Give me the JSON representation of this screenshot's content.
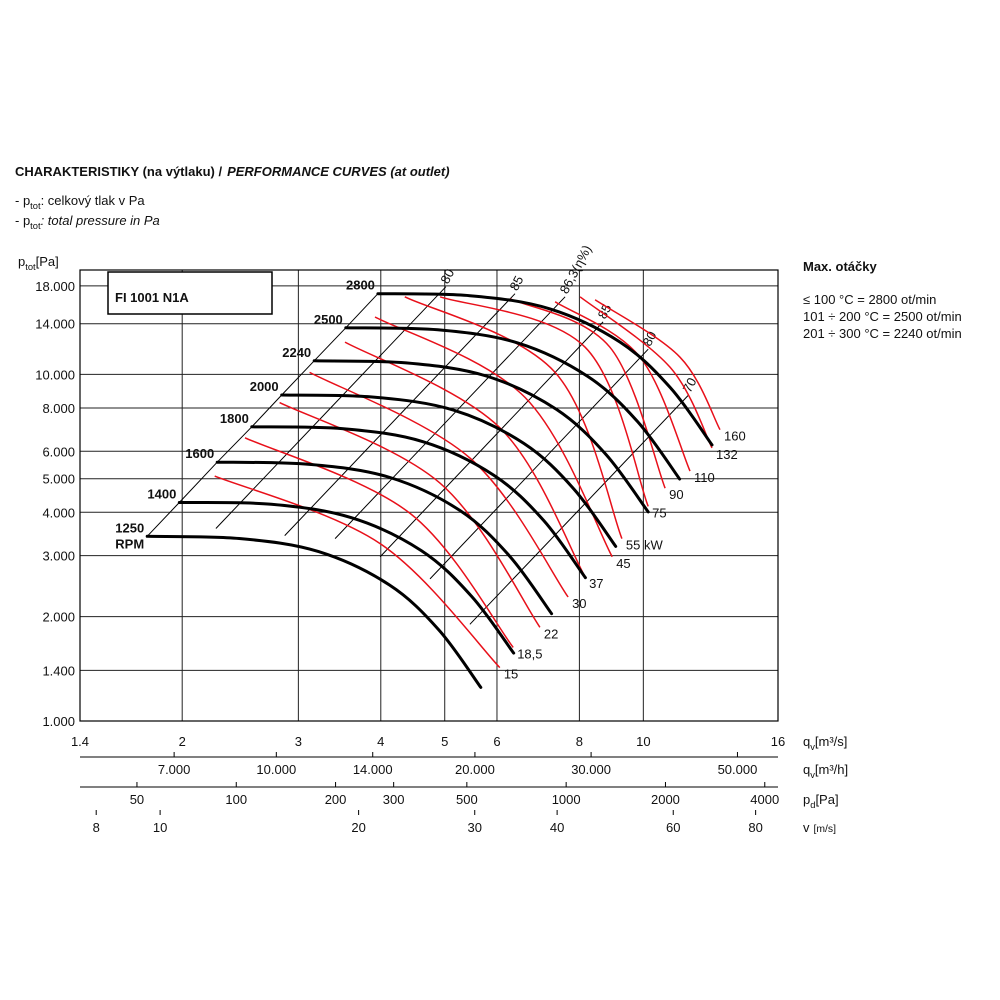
{
  "chart_data": {
    "type": "line",
    "title": [
      "CHARAKTERISTIKY (na výtlaku) /",
      "PERFORMANCE CURVES (at outlet)"
    ],
    "notes": [
      {
        "prefix": "- p",
        "sub": "tot",
        "text": ": celkový tlak v Pa"
      },
      {
        "prefix": "- p",
        "sub": "tot",
        "text": ": total pressure in Pa"
      }
    ],
    "model": "FI 1001 N1A",
    "xlabel": {
      "symbol": "q",
      "sub": "v",
      "unit": "[m³/s]"
    },
    "ylabel": {
      "symbol": "p",
      "sub": "tot",
      "unit": "[Pa]"
    },
    "xscale": "log",
    "yscale": "log",
    "xlim": [
      1.4,
      16
    ],
    "ylim": [
      1000,
      20000
    ],
    "xticks": [
      1.4,
      2,
      3,
      4,
      5,
      6,
      8,
      10,
      16
    ],
    "yticks": [
      {
        "value": 1000,
        "label": "1.000"
      },
      {
        "value": 1400,
        "label": "1.400"
      },
      {
        "value": 2000,
        "label": "2.000"
      },
      {
        "value": 3000,
        "label": "3.000"
      },
      {
        "value": 4000,
        "label": "4.000"
      },
      {
        "value": 5000,
        "label": "5.000"
      },
      {
        "value": 6000,
        "label": "6.000"
      },
      {
        "value": 8000,
        "label": "8.000"
      },
      {
        "value": 10000,
        "label": "10.000"
      },
      {
        "value": 14000,
        "label": "14.000"
      },
      {
        "value": 18000,
        "label": "18.000"
      }
    ],
    "grid": true,
    "series": [
      {
        "name": "2800",
        "color": "#000000",
        "x": [
          3.96,
          5.46,
          7.22,
          9.22,
          10.98,
          12.71
        ],
        "values": [
          17090,
          16860,
          15450,
          12390,
          9170,
          6260
        ]
      },
      {
        "name": "2500",
        "color": "#000000",
        "x": [
          3.54,
          4.88,
          6.45,
          8.23,
          9.8,
          11.35
        ],
        "values": [
          13620,
          13440,
          12320,
          9880,
          7310,
          4990
        ]
      },
      {
        "name": "2240",
        "color": "#000000",
        "x": [
          3.17,
          4.37,
          5.78,
          7.38,
          8.78,
          10.17
        ],
        "values": [
          10940,
          10790,
          9890,
          7930,
          5870,
          4010
        ]
      },
      {
        "name": "2000",
        "color": "#000000",
        "x": [
          2.83,
          3.9,
          5.16,
          6.59,
          7.84,
          9.08
        ],
        "values": [
          8720,
          8600,
          7880,
          6320,
          4680,
          3190
        ]
      },
      {
        "name": "1800",
        "color": "#000000",
        "x": [
          2.55,
          3.51,
          4.64,
          5.93,
          7.06,
          8.17
        ],
        "values": [
          7060,
          6970,
          6390,
          5120,
          3790,
          2590
        ]
      },
      {
        "name": "1600",
        "color": "#000000",
        "x": [
          2.26,
          3.12,
          4.13,
          5.27,
          6.27,
          7.26
        ],
        "values": [
          5580,
          5500,
          5040,
          4050,
          2990,
          2040
        ]
      },
      {
        "name": "1400",
        "color": "#000000",
        "x": [
          1.98,
          2.73,
          3.61,
          4.61,
          5.49,
          6.36
        ],
        "values": [
          4270,
          4220,
          3860,
          3100,
          2290,
          1570
        ]
      },
      {
        "name": "1250",
        "color": "#000000",
        "x": [
          1.77,
          2.44,
          3.22,
          4.12,
          4.9,
          5.67
        ],
        "values": [
          3410,
          3360,
          3080,
          2470,
          1830,
          1250
        ]
      }
    ],
    "rpm_unit": "RPM",
    "power_curves": [
      {
        "name": "15",
        "color": "#e8101a",
        "x": [
          2.24,
          3.99,
          6.06
        ],
        "values": [
          5086,
          3249,
          1426
        ]
      },
      {
        "name": "18,5",
        "color": "#e8101a",
        "x": [
          2.49,
          4.43,
          6.35
        ],
        "values": [
          6560,
          3971,
          1630
        ]
      },
      {
        "name": "22",
        "color": "#e8101a",
        "x": [
          2.81,
          4.92,
          6.97
        ],
        "values": [
          8290,
          4853,
          1864
        ]
      },
      {
        "name": "30",
        "color": "#e8101a",
        "x": [
          3.12,
          5.46,
          7.69
        ],
        "values": [
          10130,
          5737,
          2279
        ]
      },
      {
        "name": "37",
        "color": "#e8101a",
        "x": [
          3.53,
          6.06,
          8.16
        ],
        "values": [
          12390,
          7015,
          2604
        ]
      },
      {
        "name": "45",
        "color": "#e8101a",
        "x": [
          3.92,
          6.62,
          8.97
        ],
        "values": [
          14640,
          8574,
          2977
        ]
      },
      {
        "name": "55 kW",
        "color": "#e8101a",
        "x": [
          4.35,
          7.35,
          9.28
        ],
        "values": [
          16740,
          10130,
          3358
        ]
      },
      {
        "name": "75",
        "color": "#e8101a",
        "x": [
          4.92,
          8.16,
          10.17
        ],
        "values": [
          16740,
          11980,
          4161
        ]
      },
      {
        "name": "90",
        "color": "#e8101a",
        "x": [
          6.28,
          8.9,
          10.79
        ],
        "values": [
          16520,
          11980,
          4694
        ]
      },
      {
        "name": "110",
        "color": "#e8101a",
        "x": [
          7.35,
          9.89,
          11.77
        ],
        "values": [
          16190,
          11200,
          5259
        ]
      },
      {
        "name": "132",
        "color": "#e8101a",
        "x": [
          8.02,
          10.98,
          12.71
        ],
        "values": [
          16740,
          10480,
          6135
        ]
      },
      {
        "name": "160",
        "color": "#e8101a",
        "x": [
          8.45,
          11.37,
          13.07
        ],
        "values": [
          16410,
          11200,
          6922
        ]
      }
    ],
    "efficiency_lines": [
      {
        "name": "80",
        "x": [
          2.25,
          5.02
        ],
        "values": [
          3592,
          17900
        ]
      },
      {
        "name": "85",
        "x": [
          2.86,
          6.39
        ],
        "values": [
          3427,
          17090
        ]
      },
      {
        "name": "86,3(η%)",
        "x": [
          3.41,
          7.61
        ],
        "values": [
          3358,
          16740
        ]
      },
      {
        "name": "85",
        "x": [
          3.99,
          8.69
        ],
        "values": [
          2977,
          14170
        ]
      },
      {
        "name": "80",
        "x": [
          4.75,
          10.17
        ],
        "values": [
          2570,
          11820
        ]
      },
      {
        "name": "70",
        "x": [
          5.46,
          11.69
        ],
        "values": [
          1901,
          8690
        ]
      }
    ],
    "secondary_axes": [
      {
        "label": {
          "symbol": "q",
          "sub": "v",
          "unit": "[m³/h]"
        },
        "lim": [
          5040,
          57600
        ],
        "ticks": [
          {
            "value": 7000,
            "label": "7.000"
          },
          {
            "value": 10000,
            "label": "10.000"
          },
          {
            "value": 14000,
            "label": "14.000"
          },
          {
            "value": 20000,
            "label": "20.000"
          },
          {
            "value": 30000,
            "label": "30.000"
          },
          {
            "value": 50000,
            "label": "50.000"
          }
        ]
      },
      {
        "label": {
          "symbol": "p",
          "sub": "d",
          "unit": "[Pa]"
        },
        "lim": [
          33.6,
          4387
        ],
        "ticks": [
          50,
          100,
          200,
          300,
          500,
          1000,
          2000,
          4000
        ]
      },
      {
        "label": {
          "symbol": "v",
          "sub": "",
          "unit": "[m/s]"
        },
        "lim": [
          7.56,
          86.5
        ],
        "ticks": [
          8,
          10,
          20,
          30,
          40,
          60,
          80
        ]
      }
    ],
    "max_speed": {
      "title": "Max. otáčky",
      "lines": [
        "≤ 100 °C = 2800 ot/min",
        "101 ÷ 200 °C = 2500 ot/min",
        "201 ÷ 300 °C = 2240 ot/min"
      ]
    }
  }
}
